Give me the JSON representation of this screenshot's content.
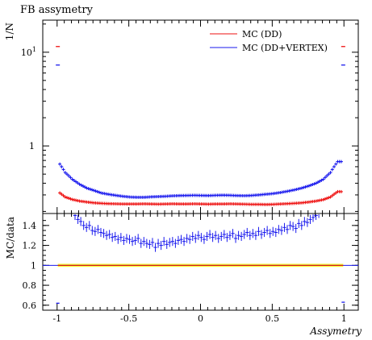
{
  "title": "FB assymetry",
  "chart_data": [
    {
      "panel": "top",
      "type": "scatter",
      "ylabel": "1/N",
      "yscale": "log",
      "ylim": [
        0.19,
        22
      ],
      "xlim": [
        -1.1,
        1.1
      ],
      "yticks": [
        {
          "v": 10,
          "label": "10¹",
          "base": "10",
          "exp": "1"
        },
        {
          "v": 1,
          "label": "1"
        }
      ],
      "legend_position": "top-right",
      "series": [
        {
          "name": "MC (DD)",
          "color": "#ee1111",
          "x_start": -0.975,
          "x_step": 0.05,
          "values": [
            0.325,
            0.285,
            0.268,
            0.258,
            0.252,
            0.247,
            0.244,
            0.242,
            0.241,
            0.24,
            0.24,
            0.24,
            0.241,
            0.24,
            0.239,
            0.24,
            0.241,
            0.24,
            0.24,
            0.241,
            0.24,
            0.239,
            0.24,
            0.24,
            0.241,
            0.24,
            0.239,
            0.238,
            0.238,
            0.237,
            0.238,
            0.24,
            0.242,
            0.244,
            0.247,
            0.252,
            0.258,
            0.267,
            0.285,
            0.325
          ],
          "edge_points": [
            {
              "x": -0.995,
              "y": 11.5
            },
            {
              "x": 0.995,
              "y": 11.5
            }
          ]
        },
        {
          "name": "MC (DD+VERTEX)",
          "color": "#1a1aee",
          "x_start": -0.975,
          "x_step": 0.05,
          "values": [
            0.68,
            0.52,
            0.44,
            0.39,
            0.355,
            0.335,
            0.315,
            0.305,
            0.297,
            0.29,
            0.285,
            0.283,
            0.283,
            0.286,
            0.288,
            0.29,
            0.293,
            0.295,
            0.296,
            0.297,
            0.296,
            0.295,
            0.297,
            0.298,
            0.297,
            0.295,
            0.294,
            0.296,
            0.3,
            0.305,
            0.31,
            0.318,
            0.328,
            0.34,
            0.355,
            0.375,
            0.4,
            0.44,
            0.52,
            0.68
          ],
          "edge_points": [
            {
              "x": -0.995,
              "y": 7.3
            },
            {
              "x": 0.995,
              "y": 7.3
            }
          ]
        }
      ]
    },
    {
      "panel": "bottom",
      "type": "scatter",
      "ylabel": "MC/data",
      "xlabel": "Assymetry",
      "ylim": [
        0.55,
        1.52
      ],
      "xlim": [
        -1.1,
        1.1
      ],
      "xticks": [
        -1,
        -0.5,
        0,
        0.5,
        1
      ],
      "xtick_labels": [
        "-1",
        "-0.5",
        "0",
        "0.5",
        "1"
      ],
      "yticks": [
        0.6,
        0.8,
        1,
        1.2,
        1.4
      ],
      "ytick_labels": [
        "0.6",
        "0.8",
        "1",
        "1.2",
        "1.4"
      ],
      "reference_line": 1,
      "reference_band": [
        0.985,
        1.015
      ],
      "band_color": "#f4f400",
      "series": [
        {
          "name": "MC (DD)",
          "color": "#ee1111",
          "x": [
            -0.995,
            0.995
          ],
          "values": [
            1.0,
            1.0
          ]
        },
        {
          "name": "MC (DD+VERTEX)",
          "color": "#1a1aee",
          "x_start": -0.875,
          "x_step": 0.02,
          "values": [
            1.5,
            1.46,
            1.44,
            1.4,
            1.38,
            1.4,
            1.35,
            1.34,
            1.36,
            1.33,
            1.32,
            1.3,
            1.31,
            1.28,
            1.29,
            1.26,
            1.28,
            1.25,
            1.27,
            1.26,
            1.24,
            1.25,
            1.27,
            1.22,
            1.24,
            1.22,
            1.21,
            1.23,
            1.18,
            1.22,
            1.2,
            1.24,
            1.21,
            1.23,
            1.24,
            1.22,
            1.25,
            1.26,
            1.24,
            1.27,
            1.26,
            1.29,
            1.27,
            1.3,
            1.28,
            1.26,
            1.29,
            1.31,
            1.28,
            1.3,
            1.27,
            1.29,
            1.31,
            1.28,
            1.3,
            1.32,
            1.27,
            1.3,
            1.29,
            1.31,
            1.33,
            1.3,
            1.32,
            1.3,
            1.34,
            1.31,
            1.33,
            1.35,
            1.32,
            1.34,
            1.33,
            1.36,
            1.35,
            1.38,
            1.36,
            1.4,
            1.39,
            1.37,
            1.42,
            1.4,
            1.44,
            1.43,
            1.46,
            1.48,
            1.5,
            1.52
          ],
          "errors": 0.045,
          "edge_points": [
            {
              "x": -0.995,
              "y": 0.62
            },
            {
              "x": 0.995,
              "y": 0.63
            }
          ]
        }
      ]
    }
  ]
}
